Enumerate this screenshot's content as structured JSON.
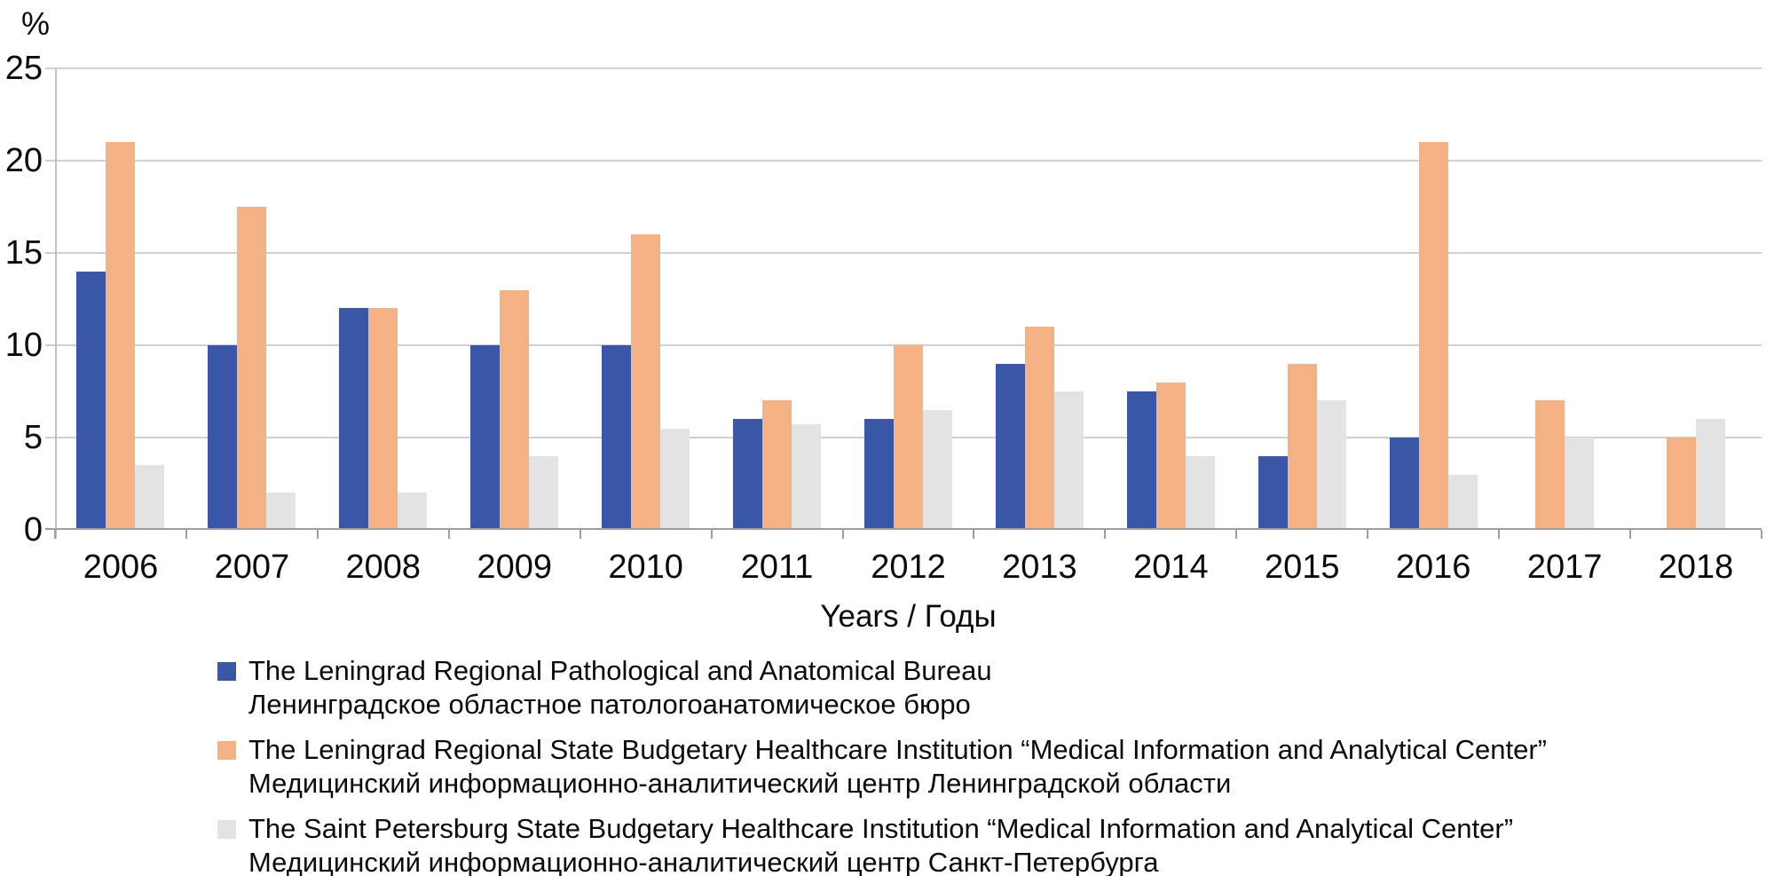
{
  "chart_data": {
    "type": "bar",
    "title": "",
    "ylabel": "%",
    "xlabel": "Years / Годы",
    "ylim": [
      0,
      25
    ],
    "yticks": [
      0,
      5,
      10,
      15,
      20,
      25
    ],
    "grid": true,
    "legend_position": "bottom-left",
    "categories": [
      "2006",
      "2007",
      "2008",
      "2009",
      "2010",
      "2011",
      "2012",
      "2013",
      "2014",
      "2015",
      "2016",
      "2017",
      "2018"
    ],
    "series": [
      {
        "name_en": "The Leningrad Regional Pathological and Anatomical Bureau",
        "name_ru": "Ленинградское областное патологоанатомическое бюро",
        "color": "#3a57a7",
        "values": [
          14,
          10,
          12,
          10,
          10,
          6,
          6,
          9,
          7.5,
          4,
          5,
          0,
          0
        ]
      },
      {
        "name_en": "The Leningrad Regional State Budgetary Healthcare Institution “Medical Information and Analytical Center”",
        "name_ru": "Медицинский информационно-аналитический центр Ленинградской области",
        "color": "#f4b183",
        "values": [
          21,
          17.5,
          12,
          13,
          16,
          7,
          10,
          11,
          8,
          9,
          21,
          7,
          5
        ]
      },
      {
        "name_en": "The Saint Petersburg State Budgetary Healthcare Institution “Medical Information and Analytical Center”",
        "name_ru": "Медицинский информационно-аналитический центр Санкт-Петербурга",
        "color": "#e3e3e3",
        "values": [
          3.5,
          2,
          2,
          4,
          5.5,
          5.7,
          6.5,
          7.5,
          4,
          7,
          3,
          5,
          6
        ]
      }
    ],
    "axis_colors": {
      "gridline": "#cfcfcf",
      "y_axis": "#c3c3c3",
      "x_axis": "#9e9e9e"
    }
  }
}
